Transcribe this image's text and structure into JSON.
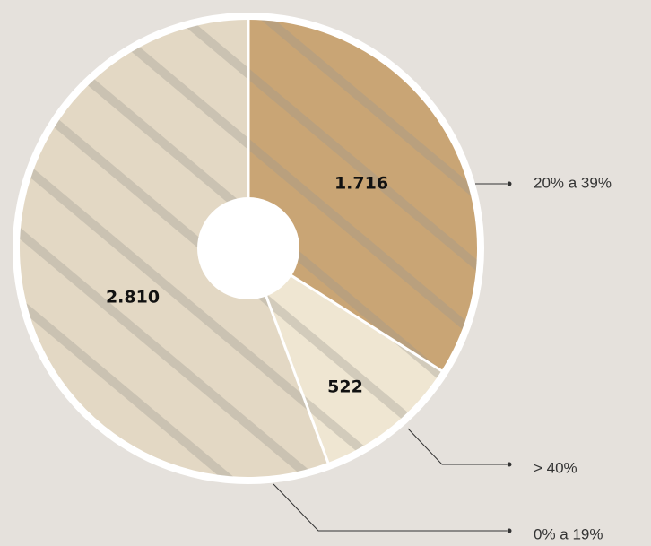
{
  "chart_data": {
    "type": "pie",
    "categories": [
      "20% a 39%",
      "> 40%",
      "0% a 19%"
    ],
    "values": [
      1716,
      522,
      2810
    ],
    "value_labels": [
      "1.716",
      "522",
      "2.810"
    ],
    "colors": [
      "#c9a575",
      "#efe6d2",
      "#e3d8c4"
    ]
  }
}
